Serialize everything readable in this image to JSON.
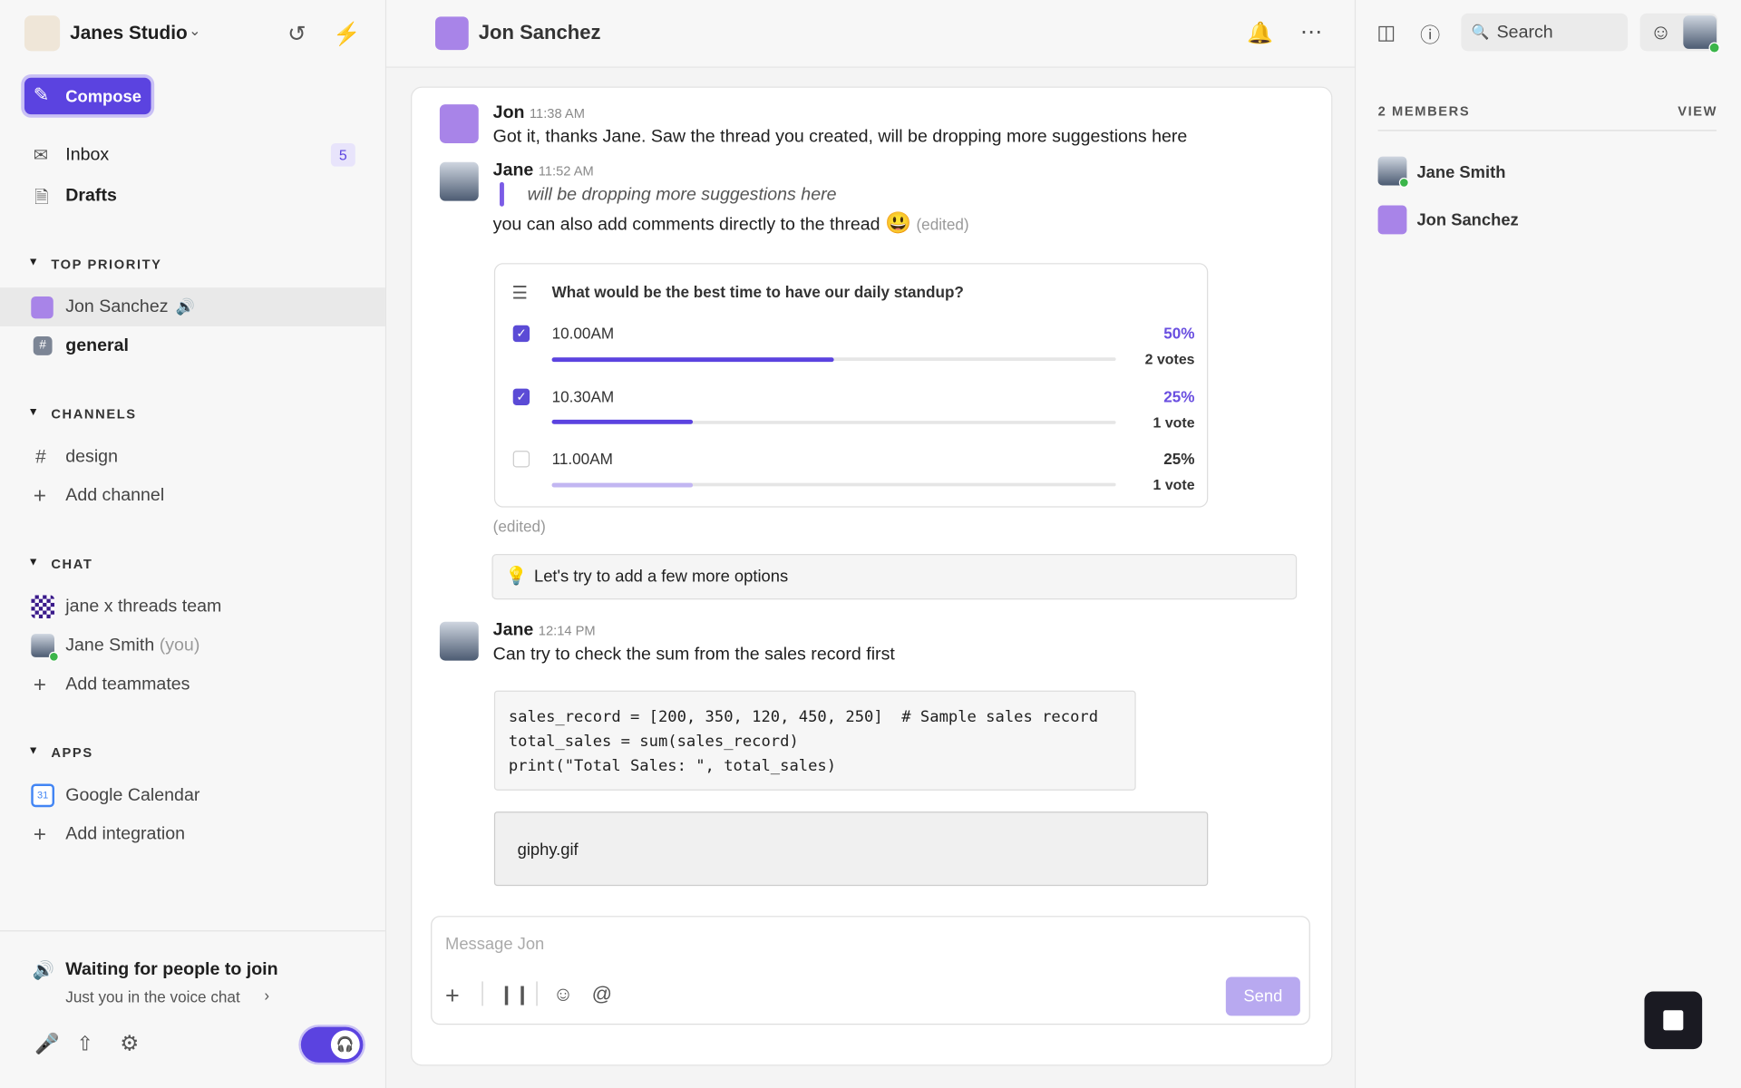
{
  "workspace": {
    "name": "Janes Studio"
  },
  "compose": "Compose",
  "nav": [
    {
      "label": "Inbox",
      "badge": "5"
    },
    {
      "label": "Drafts"
    }
  ],
  "sections": [
    {
      "title": "TOP PRIORITY",
      "items": [
        {
          "label": "Jon Sanchez"
        },
        {
          "label": "general"
        }
      ]
    },
    {
      "title": "CHANNELS",
      "items": [
        {
          "label": "design"
        },
        {
          "label": "Add channel"
        }
      ]
    },
    {
      "title": "CHAT",
      "items": [
        {
          "label": "jane x threads team"
        },
        {
          "label": "Jane Smith",
          "suffix": "(you)"
        },
        {
          "label": "Add teammates"
        }
      ]
    },
    {
      "title": "APPS",
      "items": [
        {
          "label": "Google Calendar"
        },
        {
          "label": "Add integration"
        }
      ]
    }
  ],
  "voice": {
    "title": "Waiting for people to join",
    "subtitle": "Just you in the voice chat"
  },
  "header": {
    "title": "Jon Sanchez"
  },
  "messages": [
    {
      "author": "Jon",
      "time": "11:38 AM",
      "text": "Got it, thanks Jane. Saw the thread you created, will be dropping more suggestions here"
    },
    {
      "author": "Jane",
      "time": "11:52 AM",
      "quote": "will be dropping more suggestions here",
      "text": "you can also add comments directly to the thread",
      "edited": "(edited)"
    },
    {
      "author": "Jane",
      "time": "12:14 PM",
      "text": "Can try to check the sum from the sales record first"
    }
  ],
  "poll": {
    "question": "What would be the best time to have our daily standup?",
    "options": [
      {
        "label": "10.00AM",
        "percent": "50%",
        "votes": "2 votes",
        "checked": true
      },
      {
        "label": "10.30AM",
        "percent": "25%",
        "votes": "1 vote",
        "checked": true
      },
      {
        "label": "11.00AM",
        "percent": "25%",
        "votes": "1 vote",
        "checked": false
      }
    ],
    "edited": "(edited)"
  },
  "tip": "Let's try to add a few more options",
  "code": [
    "sales_record = [200, 350, 120, 450, 250]  # Sample sales record",
    "total_sales = sum(sales_record)",
    "print(\"Total Sales: \", total_sales)"
  ],
  "attachment": "giphy.gif",
  "composer": {
    "placeholder": "Message Jon",
    "send": "Send"
  },
  "search": "Search",
  "members": {
    "title": "2 MEMBERS",
    "action": "VIEW",
    "list": [
      "Jane Smith",
      "Jon Sanchez"
    ]
  }
}
